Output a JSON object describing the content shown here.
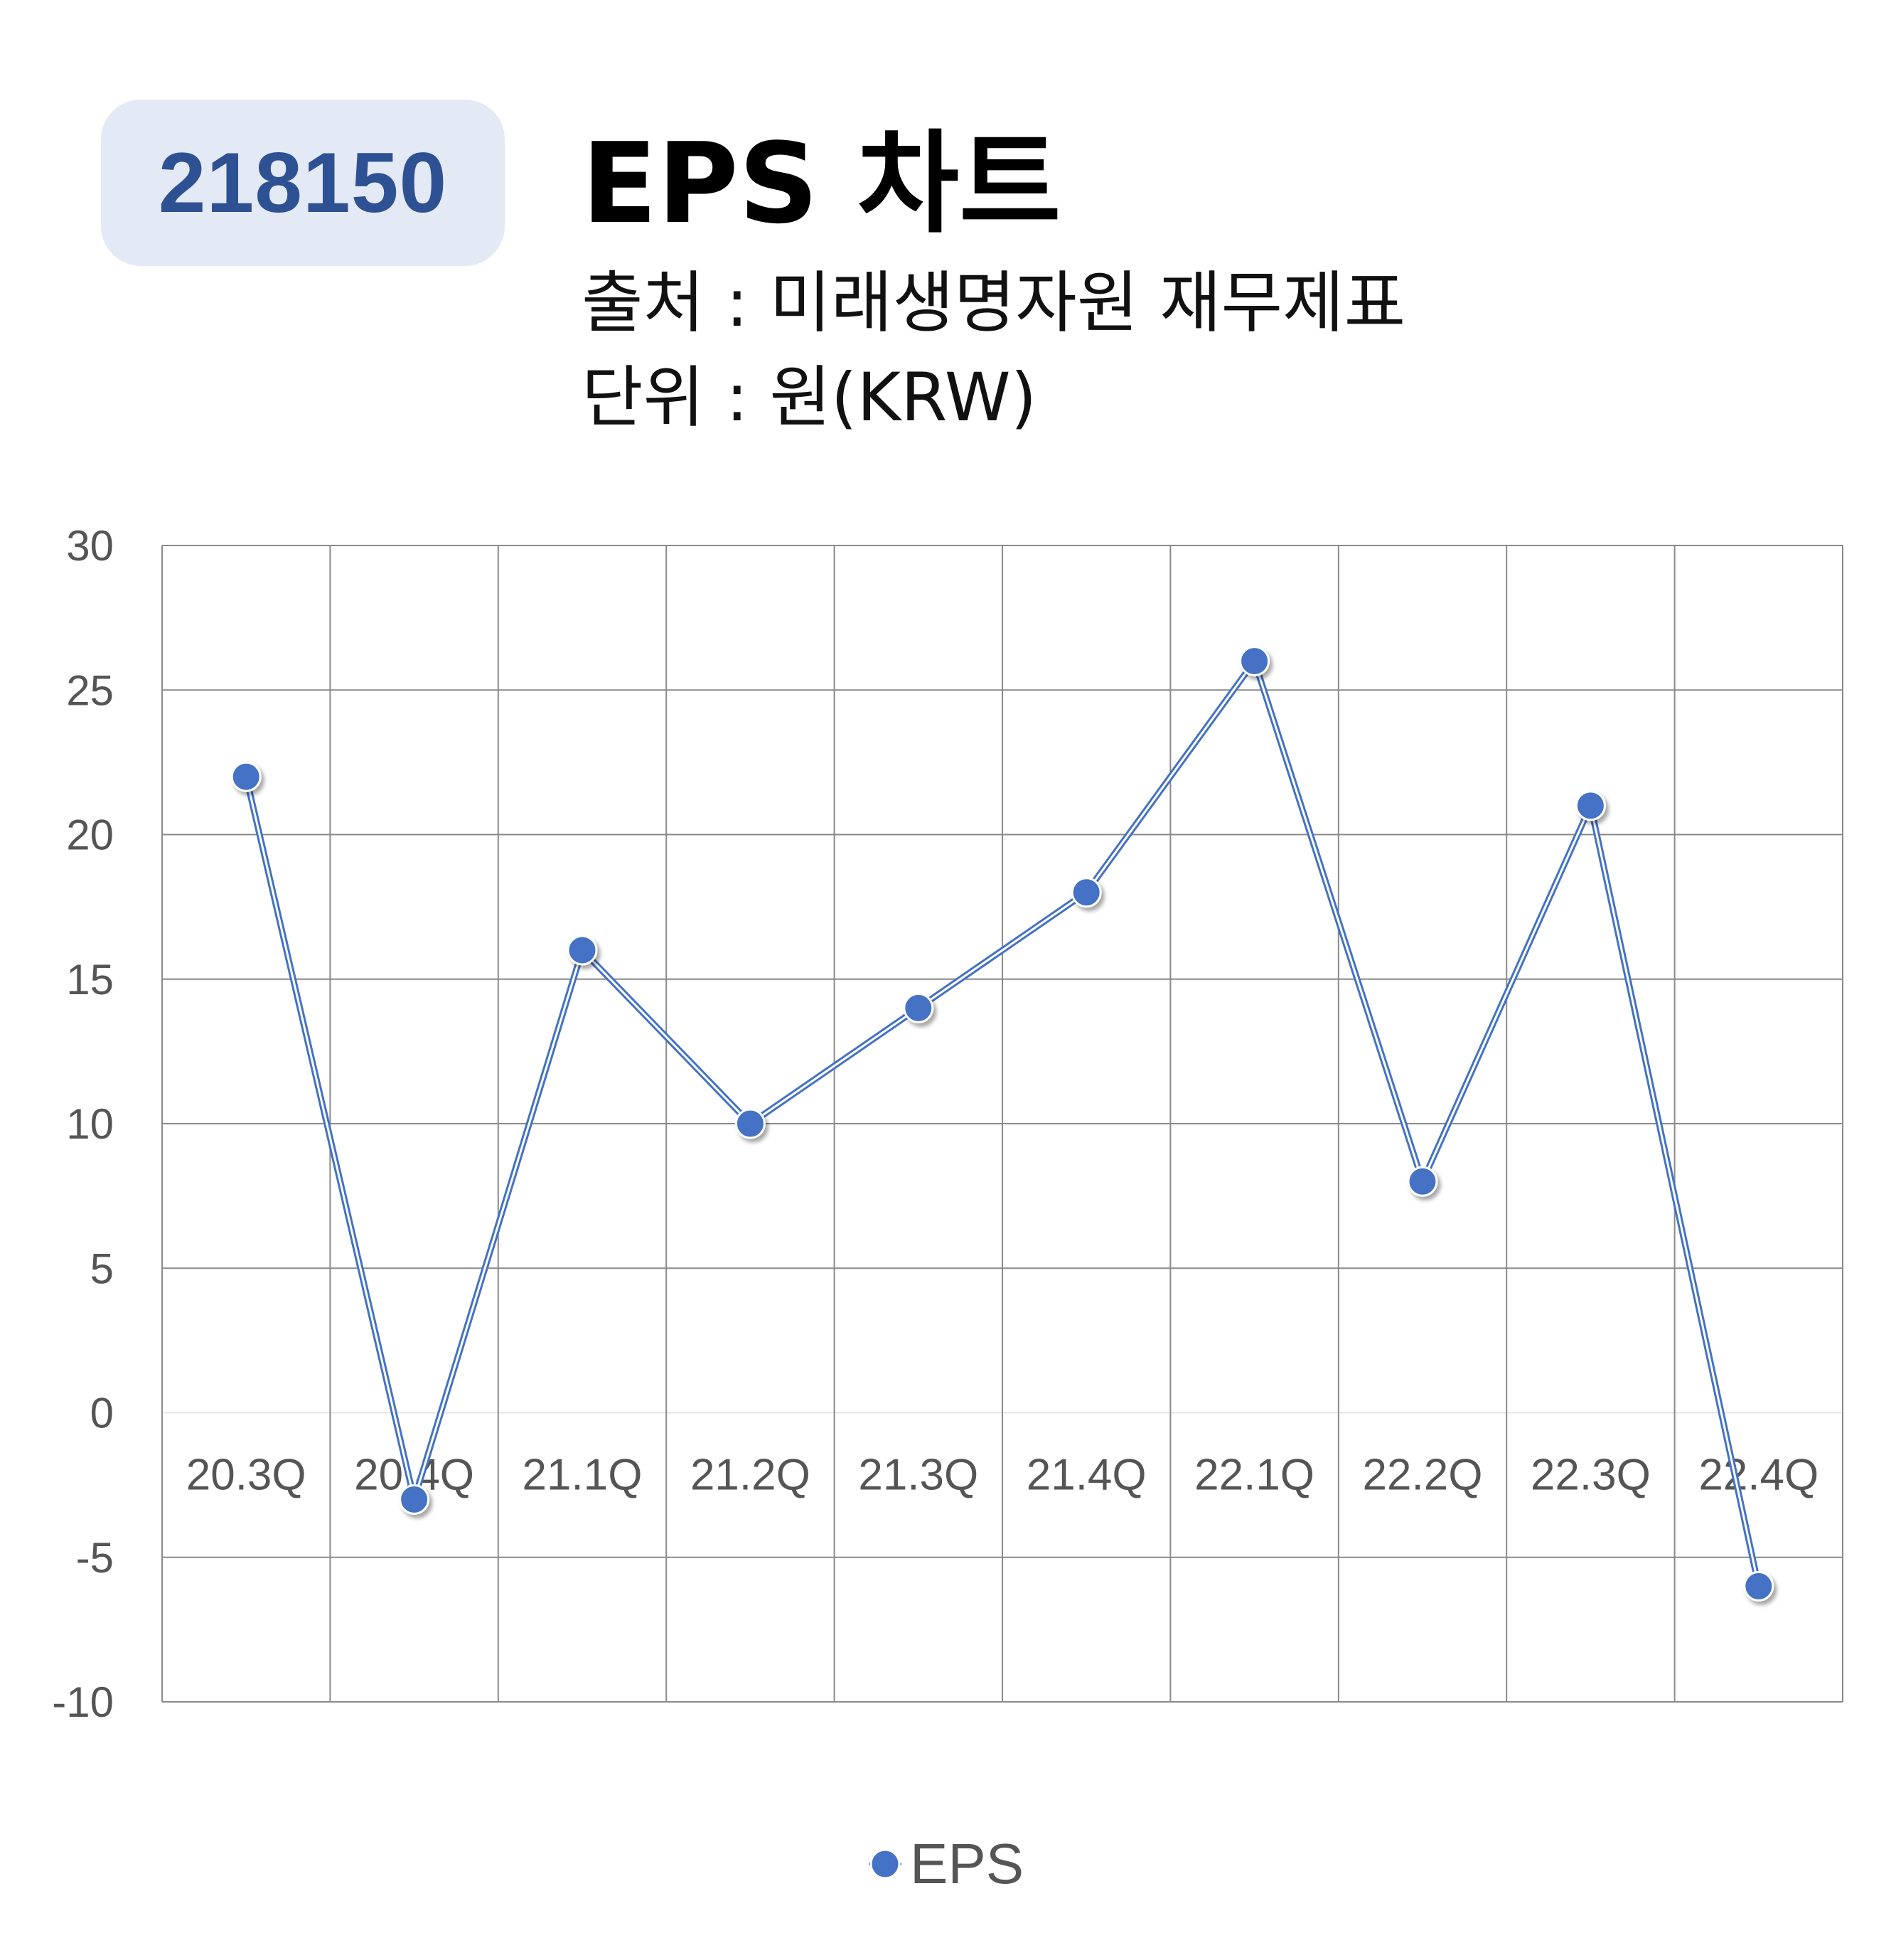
{
  "header": {
    "badge": "218150",
    "title": "EPS 차트",
    "source": "출처 : 미래생명자원 재무제표",
    "unit": "단위 : 원(KRW)"
  },
  "colors": {
    "series": "#4472c4",
    "badge_bg": "#e3e9f5",
    "badge_text": "#2d5193",
    "grid": "#8a8a8a"
  },
  "chart_data": {
    "type": "line",
    "categories": [
      "20.3Q",
      "20.4Q",
      "21.1Q",
      "21.2Q",
      "21.3Q",
      "21.4Q",
      "22.1Q",
      "22.2Q",
      "22.3Q",
      "22.4Q"
    ],
    "series": [
      {
        "name": "EPS",
        "values": [
          22,
          -3,
          16,
          10,
          14,
          18,
          26,
          8,
          21,
          -6
        ]
      }
    ],
    "ylim": [
      -10,
      30
    ],
    "yticks": [
      30,
      25,
      20,
      15,
      10,
      5,
      0,
      -5,
      -10
    ],
    "grid": true,
    "legend": "bottom-center"
  }
}
